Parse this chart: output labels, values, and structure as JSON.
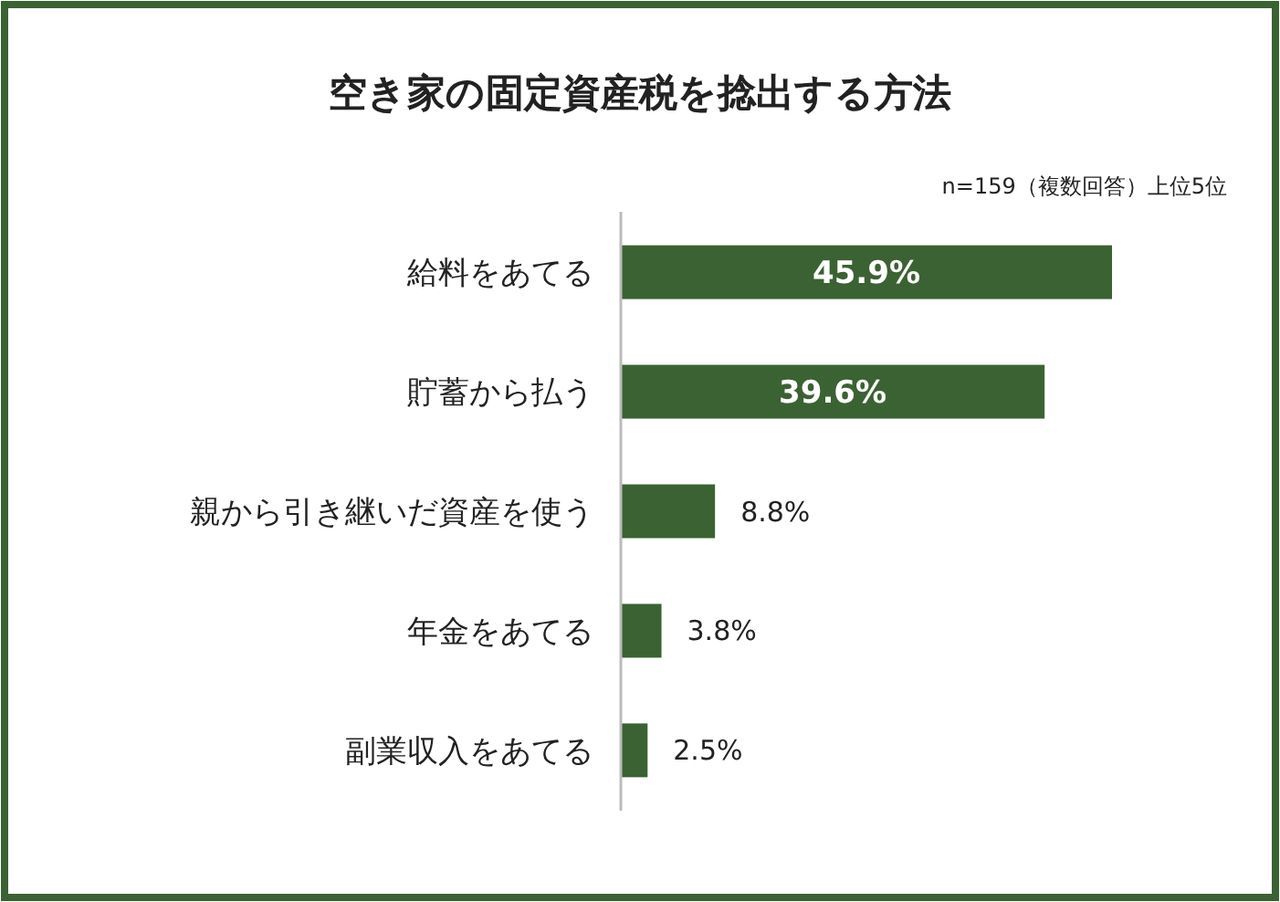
{
  "chart_data": {
    "type": "bar",
    "orientation": "horizontal",
    "title": "空き家の固定資産税を捻出する方法",
    "subtitle": "n=159（複数回答）上位5位",
    "categories": [
      "給料をあてる",
      "貯蓄から払う",
      "親から引き継いだ資産を使う",
      "年金をあてる",
      "副業収入をあてる"
    ],
    "values": [
      45.9,
      39.6,
      8.8,
      3.8,
      2.5
    ],
    "color": "#3b6232",
    "data_labels": true,
    "value_labels": [
      "45.9%",
      "39.6%",
      "8.8%",
      "3.8%",
      "2.5%"
    ]
  }
}
